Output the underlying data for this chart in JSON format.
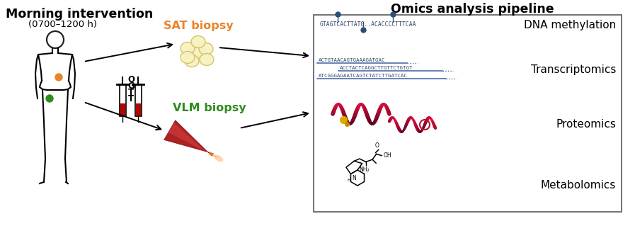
{
  "title": "Omics analysis pipeline",
  "left_title": "Morning intervention",
  "left_subtitle": "(0700–1200 h)",
  "sat_label": "SAT biopsy",
  "vlm_label": "VLM biopsy",
  "sat_color": "#E8842A",
  "vlm_color": "#2E8B1E",
  "omics_labels": [
    "DNA methylation",
    "Transcriptomics",
    "Proteomics",
    "Metabolomics"
  ],
  "dna_seq1": "GTAGTCACTTATG..ACACCCCTTTCAA",
  "rna_seq1": "ACTGTAACAGTGAAAGATGAC",
  "rna_seq2": "ACCTACTCAGGCTTGTTCTGTGT",
  "rna_seq3": "ATCGGGAGAATCAGTCTATCTTGATCAC",
  "box_color": "#555555",
  "bg_color": "#ffffff",
  "title_fontsize": 12,
  "omics_fontsize": 11,
  "dot_color": "#2a4e7a",
  "line_color": "#4a6ea8",
  "fat_fill": "#F7F2C0",
  "fat_edge": "#D4C060",
  "muscle_dark": "#AA2222",
  "muscle_mid": "#CC3333",
  "muscle_light": "#FF6644"
}
